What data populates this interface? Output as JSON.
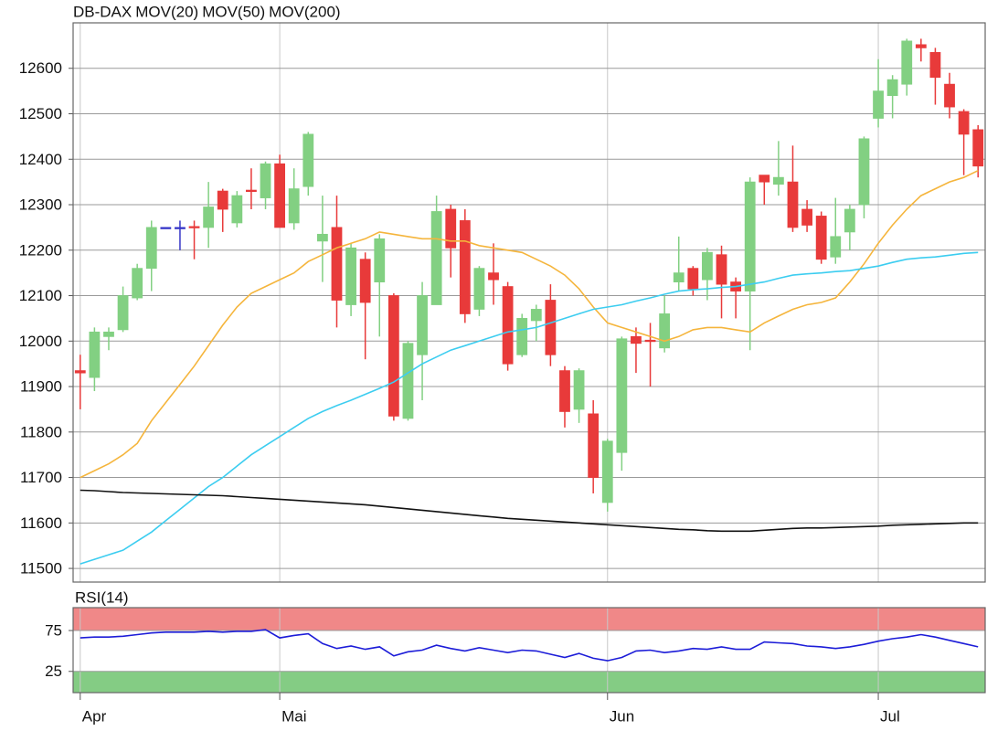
{
  "chart_data": [
    {
      "type": "candlestick",
      "name": "DB-DAX",
      "name_color": "#e8302f",
      "up_color": "#82d082",
      "down_color": "#e83a3a",
      "flat_color": "#3636c8",
      "open": [
        11935,
        11920,
        12010,
        12025,
        12095,
        12160,
        12250,
        12250,
        12252,
        12250,
        12330,
        12260,
        12332,
        12315,
        12390,
        12260,
        12340,
        12220,
        12250,
        12080,
        12180,
        12130,
        12100,
        11830,
        11970,
        12080,
        12290,
        12265,
        12070,
        12150,
        12120,
        11970,
        12045,
        12090,
        11935,
        11850,
        11840,
        11645,
        11755,
        12010,
        12002,
        11985,
        12130,
        12160,
        12135,
        12190,
        12130,
        12110,
        12365,
        12345,
        12350,
        12290,
        12275,
        12185,
        12240,
        12300,
        12490,
        12540,
        12565,
        12652,
        12635,
        12565,
        12505,
        12465
      ],
      "high": [
        11970,
        12030,
        12030,
        12120,
        12170,
        12265,
        12250,
        12265,
        12265,
        12350,
        12335,
        12330,
        12380,
        12395,
        12410,
        12380,
        12460,
        12320,
        12320,
        12215,
        12195,
        12235,
        12105,
        12000,
        12130,
        12320,
        12300,
        12290,
        12165,
        12215,
        12130,
        12060,
        12080,
        12125,
        11945,
        11940,
        11870,
        11785,
        12010,
        12030,
        12040,
        12100,
        12230,
        12165,
        12205,
        12210,
        12140,
        12360,
        12365,
        12440,
        12430,
        12310,
        12285,
        12315,
        12300,
        12450,
        12620,
        12585,
        12665,
        12665,
        12645,
        12590,
        12510,
        12475
      ],
      "low": [
        11850,
        11890,
        11980,
        12020,
        12090,
        12110,
        12250,
        12200,
        12180,
        12205,
        12240,
        12250,
        12290,
        12290,
        12250,
        12245,
        12320,
        12130,
        12030,
        12055,
        11960,
        12010,
        11825,
        11825,
        11870,
        12080,
        12140,
        12040,
        12055,
        12080,
        11935,
        11965,
        12000,
        11945,
        11810,
        11820,
        11665,
        11625,
        11715,
        11930,
        11900,
        11975,
        12110,
        12100,
        12090,
        12050,
        12050,
        11980,
        12300,
        12320,
        12240,
        12240,
        12170,
        12170,
        12200,
        12270,
        12470,
        12490,
        12540,
        12615,
        12520,
        12490,
        12365,
        12360
      ],
      "close": [
        11930,
        12020,
        12020,
        12100,
        12160,
        12250,
        12250,
        12250,
        12250,
        12295,
        12290,
        12320,
        12330,
        12390,
        12250,
        12335,
        12455,
        12235,
        12090,
        12205,
        12085,
        12225,
        11835,
        11995,
        12100,
        12285,
        12205,
        12060,
        12160,
        12135,
        11950,
        12050,
        12070,
        11970,
        11845,
        11935,
        11700,
        11780,
        12005,
        11995,
        12000,
        12060,
        12150,
        12115,
        12195,
        12125,
        12110,
        12350,
        12350,
        12360,
        12250,
        12255,
        12180,
        12230,
        12290,
        12445,
        12550,
        12575,
        12660,
        12645,
        12580,
        12515,
        12455,
        12385
      ],
      "series": [
        {
          "name": "MOV(20)",
          "color": "#f5b53c",
          "values": [
            11700,
            11715,
            11730,
            11750,
            11775,
            11825,
            11865,
            11905,
            11945,
            11990,
            12035,
            12075,
            12105,
            12120,
            12135,
            12150,
            12175,
            12190,
            12205,
            12215,
            12225,
            12240,
            12235,
            12230,
            12225,
            12225,
            12220,
            12220,
            12210,
            12205,
            12200,
            12195,
            12180,
            12165,
            12145,
            12115,
            12075,
            12040,
            12030,
            12020,
            12010,
            12000,
            12010,
            12025,
            12030,
            12030,
            12025,
            12020,
            12040,
            12055,
            12070,
            12080,
            12085,
            12095,
            12130,
            12170,
            12215,
            12255,
            12290,
            12320,
            12335,
            12350,
            12360,
            12375
          ]
        },
        {
          "name": "MOV(50)",
          "color": "#3ccdf0",
          "values": [
            11510,
            11520,
            11530,
            11540,
            11560,
            11580,
            11605,
            11630,
            11655,
            11680,
            11700,
            11725,
            11750,
            11770,
            11790,
            11810,
            11830,
            11845,
            11858,
            11870,
            11883,
            11896,
            11910,
            11930,
            11950,
            11965,
            11980,
            11990,
            12000,
            12010,
            12020,
            12025,
            12030,
            12040,
            12050,
            12060,
            12070,
            12075,
            12080,
            12088,
            12095,
            12103,
            12110,
            12113,
            12115,
            12118,
            12120,
            12125,
            12130,
            12138,
            12145,
            12148,
            12150,
            12153,
            12155,
            12160,
            12165,
            12173,
            12180,
            12183,
            12185,
            12189,
            12193,
            12195
          ]
        },
        {
          "name": "MOV(200)",
          "color": "#111111",
          "values": [
            11672,
            11671,
            11669,
            11667,
            11666,
            11665,
            11664,
            11663,
            11662,
            11661,
            11660,
            11658,
            11656,
            11654,
            11652,
            11650,
            11648,
            11646,
            11644,
            11642,
            11640,
            11637,
            11634,
            11631,
            11628,
            11625,
            11622,
            11619,
            11616,
            11613,
            11610,
            11608,
            11606,
            11604,
            11602,
            11600,
            11598,
            11596,
            11594,
            11592,
            11590,
            11588,
            11586,
            11585,
            11583,
            11582,
            11582,
            11582,
            11584,
            11586,
            11588,
            11589,
            11589,
            11590,
            11591,
            11592,
            11593,
            11595,
            11596,
            11597,
            11598,
            11599,
            11600,
            11600
          ]
        }
      ],
      "xlim": [
        -0.5,
        63.5
      ],
      "xticks": [
        {
          "value": 0,
          "label": "Apr"
        },
        {
          "value": 14,
          "label": "Mai"
        },
        {
          "value": 37,
          "label": "Jun"
        },
        {
          "value": 56,
          "label": "Jul"
        }
      ],
      "ylim": [
        11470,
        12700
      ],
      "yticks": [
        11500,
        11600,
        11700,
        11800,
        11900,
        12000,
        12100,
        12200,
        12300,
        12400,
        12500,
        12600
      ],
      "grid": true
    },
    {
      "type": "line",
      "series": [
        {
          "name": "RSI(14)",
          "color": "#1c1cd8",
          "values": [
            66,
            67,
            67,
            68,
            70,
            72,
            73,
            73,
            73,
            74,
            73,
            74,
            74,
            76,
            66,
            69,
            71,
            59,
            53,
            56,
            52,
            55,
            44,
            49,
            51,
            57,
            53,
            50,
            54,
            51,
            48,
            51,
            50,
            46,
            42,
            47,
            41,
            38,
            42,
            50,
            51,
            48,
            50,
            53,
            52,
            55,
            52,
            52,
            61,
            60,
            59,
            56,
            55,
            53,
            55,
            58,
            62,
            65,
            67,
            70,
            67,
            63,
            59,
            55
          ]
        }
      ],
      "zones": [
        {
          "range": [
            75,
            103
          ],
          "color": "#f08888"
        },
        {
          "range": [
            -1,
            25
          ],
          "color": "#84cc84"
        }
      ],
      "xlim": [
        -0.5,
        63.5
      ],
      "ylim": [
        -1,
        103
      ],
      "yticks": [
        25,
        75
      ],
      "grid": true
    }
  ]
}
